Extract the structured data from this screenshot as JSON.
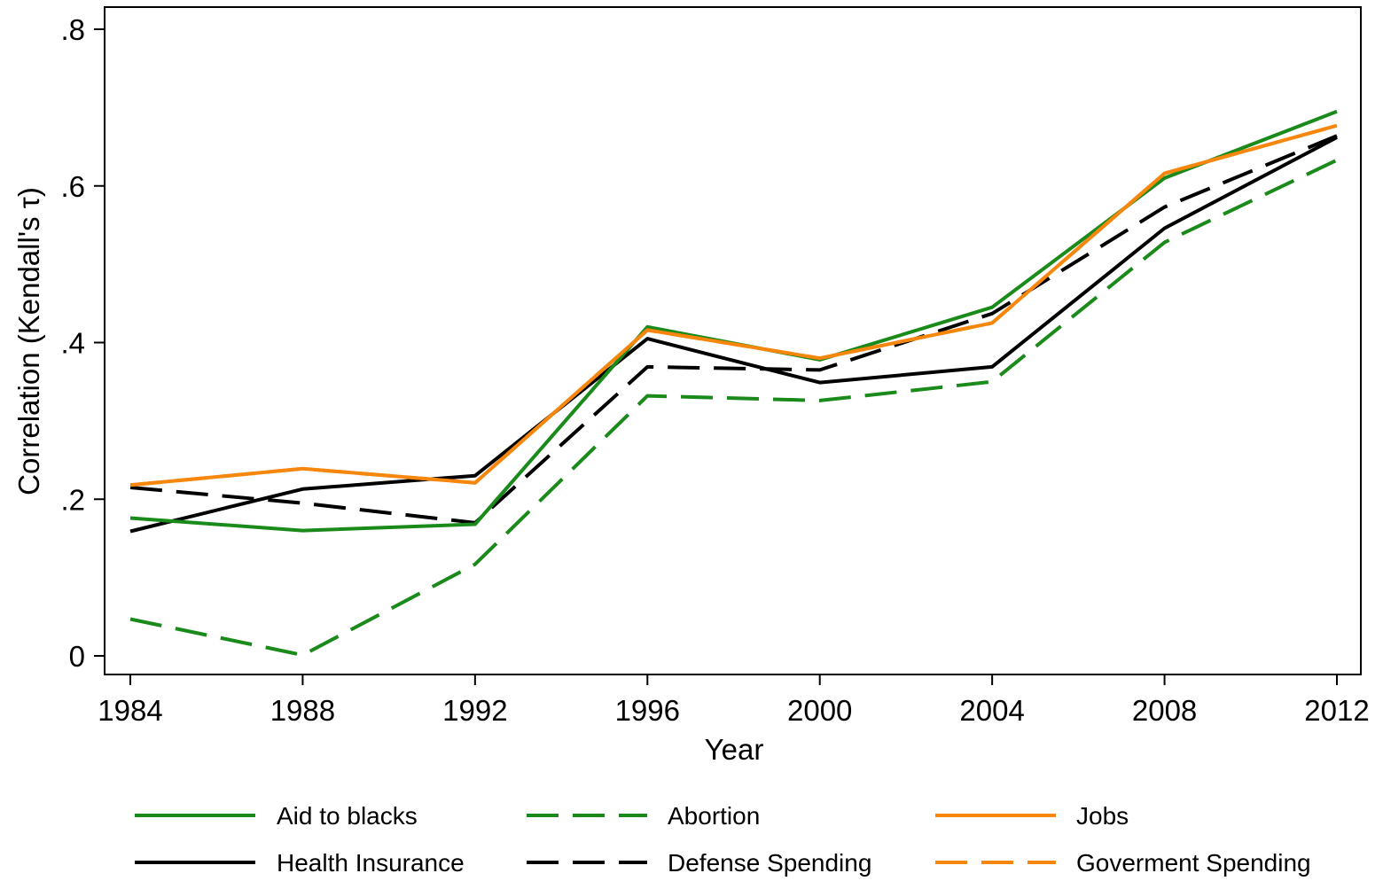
{
  "chart_data": {
    "type": "line",
    "xlabel": "Year",
    "ylabel": "Correlation (Kendall's τ)",
    "x": [
      1984,
      1988,
      1992,
      1996,
      2000,
      2004,
      2008,
      2012
    ],
    "x_ticks": [
      "1984",
      "1988",
      "1992",
      "1996",
      "2000",
      "2004",
      "2008",
      "2012"
    ],
    "y_ticks": [
      {
        "value": 0,
        "label": "0"
      },
      {
        "value": 0.2,
        "label": ".2"
      },
      {
        "value": 0.4,
        "label": ".4"
      },
      {
        "value": 0.6,
        "label": ".6"
      },
      {
        "value": 0.8,
        "label": ".8"
      }
    ],
    "xlim": [
      1983.5,
      2012.5
    ],
    "ylim": [
      -0.025,
      0.83
    ],
    "grid": false,
    "legend_position": "bottom",
    "series": [
      {
        "name": "Aid to blacks",
        "color": "#1a8a1a",
        "dashed": false,
        "values": [
          0.176,
          0.16,
          0.168,
          0.42,
          0.378,
          0.445,
          0.61,
          0.695
        ]
      },
      {
        "name": "Abortion",
        "color": "#1a8a1a",
        "dashed": true,
        "values": [
          0.047,
          0.001,
          0.117,
          0.332,
          0.326,
          0.35,
          0.528,
          0.633
        ]
      },
      {
        "name": "Jobs",
        "color": "#f7860d",
        "dashed": false,
        "values": [
          0.218,
          0.239,
          0.221,
          0.416,
          0.38,
          0.425,
          0.616,
          0.677
        ]
      },
      {
        "name": "Health Insurance",
        "color": "#000000",
        "dashed": false,
        "values": [
          0.159,
          0.213,
          0.23,
          0.405,
          0.349,
          0.369,
          0.546,
          0.662
        ]
      },
      {
        "name": "Defense Spending",
        "color": "#000000",
        "dashed": true,
        "values": [
          0.215,
          0.195,
          0.17,
          0.369,
          0.365,
          0.437,
          0.573,
          0.664
        ]
      },
      {
        "name": "Goverment Spending",
        "color": "#f7860d",
        "dashed": true,
        "values": [
          0.218,
          0.239,
          0.221,
          0.416,
          0.38,
          0.425,
          0.616,
          0.677
        ]
      }
    ]
  }
}
